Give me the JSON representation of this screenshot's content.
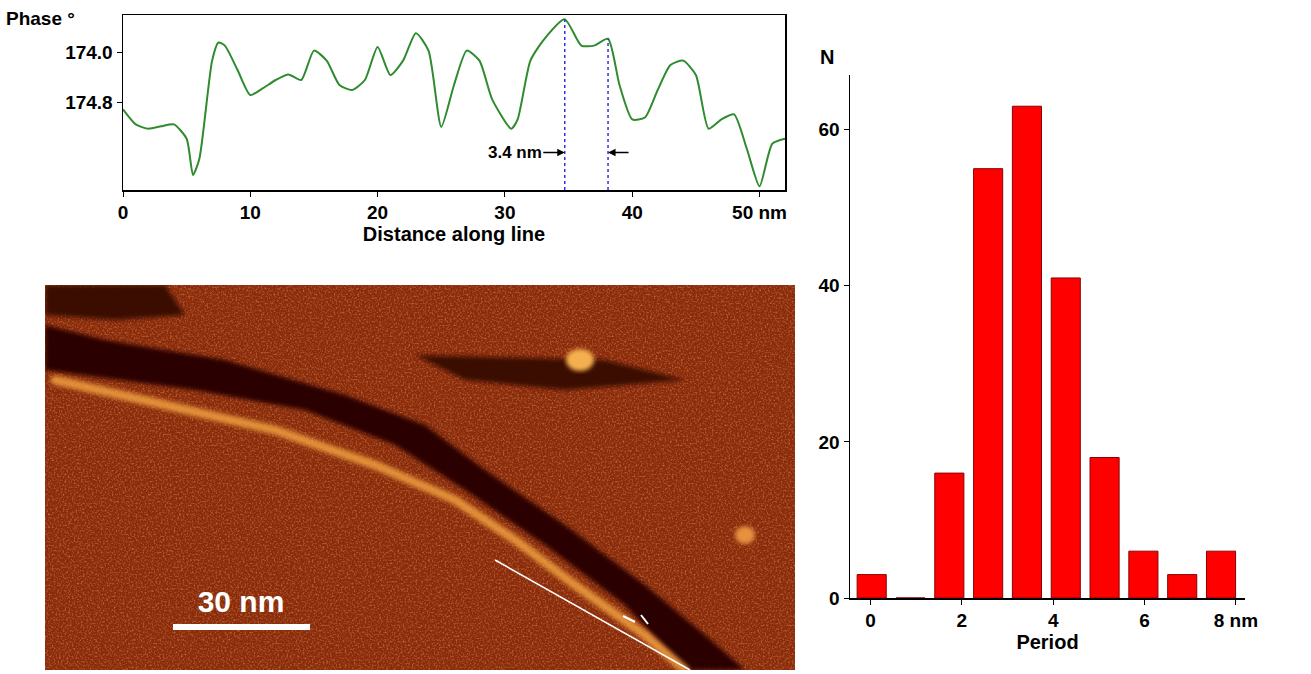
{
  "chart_data": [
    {
      "type": "line",
      "y_label": "Phase °",
      "x_label": "Distance along line",
      "x": [
        0,
        1,
        2,
        3,
        4,
        5,
        5.5,
        6,
        7,
        7.5,
        8,
        9,
        10,
        11,
        12,
        13,
        14,
        15,
        16,
        17,
        18,
        19,
        20,
        21,
        22,
        23,
        24,
        25,
        26,
        27,
        28,
        29,
        30.5,
        31,
        32,
        33,
        34.7,
        36,
        37,
        38.1,
        39,
        40,
        41,
        42,
        43,
        44,
        45,
        46,
        47,
        48,
        49,
        50,
        51,
        52
      ],
      "values": [
        174.91,
        175.15,
        175.22,
        175.18,
        175.15,
        175.38,
        175.96,
        175.7,
        174.13,
        173.84,
        173.89,
        174.28,
        174.68,
        174.57,
        174.44,
        174.35,
        174.44,
        173.97,
        174.13,
        174.52,
        174.6,
        174.44,
        173.91,
        174.36,
        174.13,
        173.69,
        173.97,
        175.19,
        174.52,
        173.97,
        174.13,
        174.75,
        175.22,
        175.07,
        174.13,
        173.81,
        173.47,
        173.89,
        173.89,
        173.78,
        174.52,
        175.07,
        175.04,
        174.6,
        174.2,
        174.13,
        174.36,
        175.22,
        175.07,
        174.99,
        175.54,
        176.14,
        175.46,
        175.38
      ],
      "color": "#2e8b2e",
      "xlim": [
        0,
        52
      ],
      "xticks": [
        0,
        10,
        20,
        30,
        40,
        {
          "value": 50,
          "label": "50 nm"
        }
      ],
      "ylim": [
        176.2,
        173.4
      ],
      "yticks": [
        {
          "value": 174,
          "label": "174.0"
        },
        174.8
      ],
      "annotations": [
        {
          "text": "3.4 nm",
          "x_start": 34.7,
          "x_end": 38.1,
          "y": 175.6
        }
      ],
      "grid": false
    },
    {
      "type": "histogram",
      "y_label": "N",
      "x_label": "Period",
      "bins": [
        -0.4,
        0.45,
        1.3,
        2.15,
        3.0,
        3.85,
        4.7,
        5.55,
        6.4,
        7.25,
        8.1
      ],
      "values": [
        3,
        0,
        16,
        55,
        63,
        41,
        18,
        6,
        3,
        6
      ],
      "color": "#ff0000",
      "xlim": [
        -0.45,
        8.2
      ],
      "xticks": [
        0,
        2,
        4,
        6,
        {
          "value": 8,
          "label": "8 nm"
        }
      ],
      "ylim": [
        0,
        67
      ],
      "yticks": [
        0,
        20,
        40,
        60
      ],
      "grid": false
    }
  ],
  "image": {
    "scale_bar": "30 nm"
  }
}
